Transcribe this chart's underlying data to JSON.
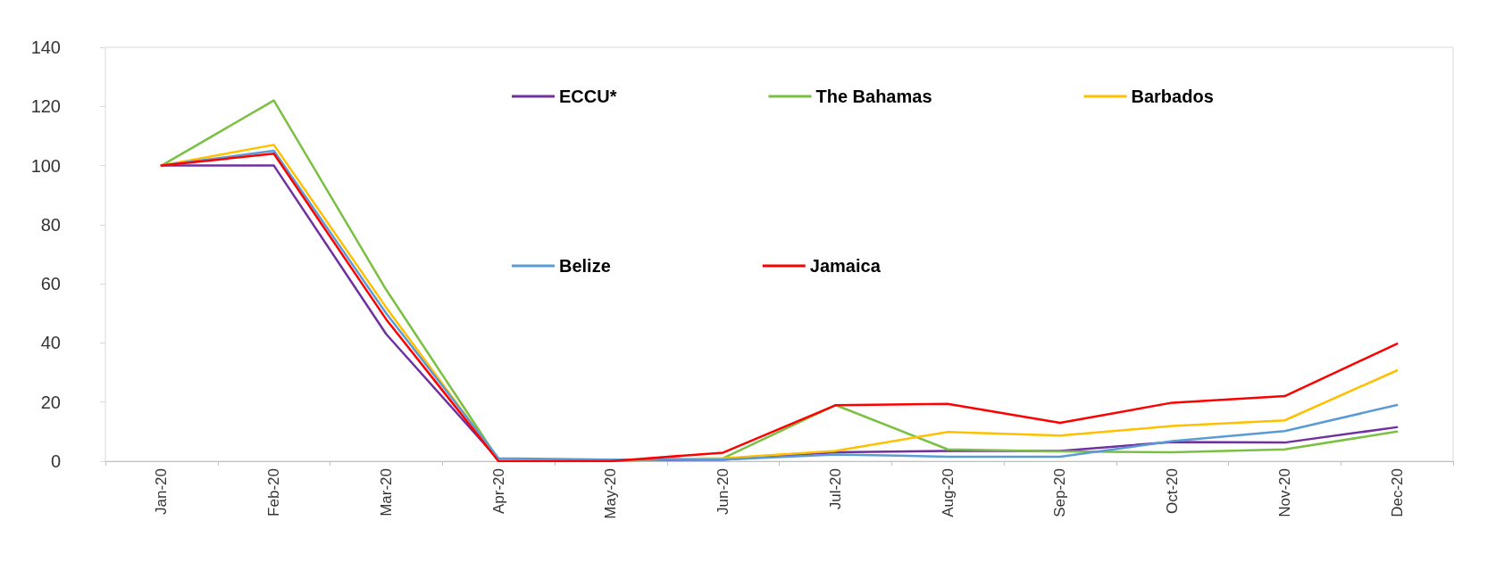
{
  "chart_data": {
    "type": "line",
    "categories": [
      "Jan-20",
      "Feb-20",
      "Mar-20",
      "Apr-20",
      "May-20",
      "Jun-20",
      "Jul-20",
      "Aug-20",
      "Sep-20",
      "Oct-20",
      "Nov-20",
      "Dec-20"
    ],
    "series": [
      {
        "name": "ECCU*",
        "color": "#7030a0",
        "values": [
          100,
          100,
          43,
          0.5,
          0.3,
          0.5,
          3,
          3.5,
          3.5,
          6.5,
          6.3,
          11.5
        ]
      },
      {
        "name": "The Bahamas",
        "color": "#7ac143",
        "values": [
          100,
          122,
          58,
          0.5,
          0.3,
          1,
          19,
          4,
          3.3,
          3,
          4,
          10
        ]
      },
      {
        "name": "Barbados",
        "color": "#ffc000",
        "values": [
          100,
          107,
          52,
          0.5,
          0.3,
          1,
          3.5,
          9.9,
          8.7,
          11.9,
          13.8,
          30.7
        ]
      },
      {
        "name": "Belize",
        "color": "#5b9bd5",
        "values": [
          100,
          105,
          50,
          1,
          0.5,
          0.5,
          2.3,
          1.5,
          1.5,
          6.8,
          10.2,
          19
        ]
      },
      {
        "name": "Jamaica",
        "color": "#ff0000",
        "values": [
          100,
          104,
          48,
          0,
          0,
          2.9,
          18.9,
          19.4,
          13,
          19.8,
          22,
          39.7
        ]
      }
    ],
    "ylim": [
      0,
      140
    ],
    "yticks": [
      0,
      20,
      40,
      60,
      80,
      100,
      120,
      140
    ],
    "grid": false,
    "legend": "top",
    "marker": "none",
    "line_style": "solid"
  }
}
